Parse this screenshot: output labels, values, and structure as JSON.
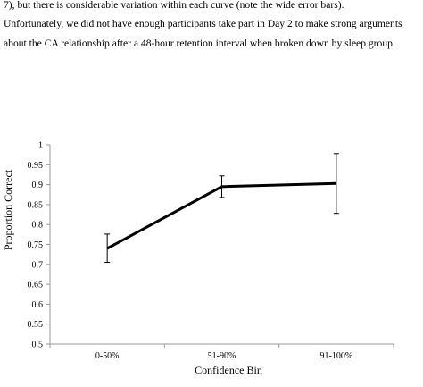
{
  "text_lines": [
    "7), but there is considerable variation within each curve (note the wide error bars).",
    "Unfortunately, we did not have enough participants take part in Day 2 to make strong arguments",
    "about the CA relationship after a 48-hour retention interval when broken down by sleep group."
  ],
  "chart_data": {
    "type": "line",
    "title": "",
    "xlabel": "Confidence Bin",
    "ylabel": "Proportion Correct",
    "categories": [
      "0-50%",
      "51-90%",
      "91-100%"
    ],
    "series": [
      {
        "values": [
          0.74,
          0.895,
          0.903
        ],
        "error_low": [
          0.705,
          0.868,
          0.828
        ],
        "error_high": [
          0.776,
          0.922,
          0.978
        ],
        "color": "#000000"
      }
    ],
    "ylim": [
      0.5,
      1
    ],
    "yticks": [
      "0.5",
      "0.55",
      "0.6",
      "0.65",
      "0.7",
      "0.75",
      "0.8",
      "0.85",
      "0.9",
      "0.95",
      "1"
    ],
    "grid": false,
    "legend": "none"
  }
}
